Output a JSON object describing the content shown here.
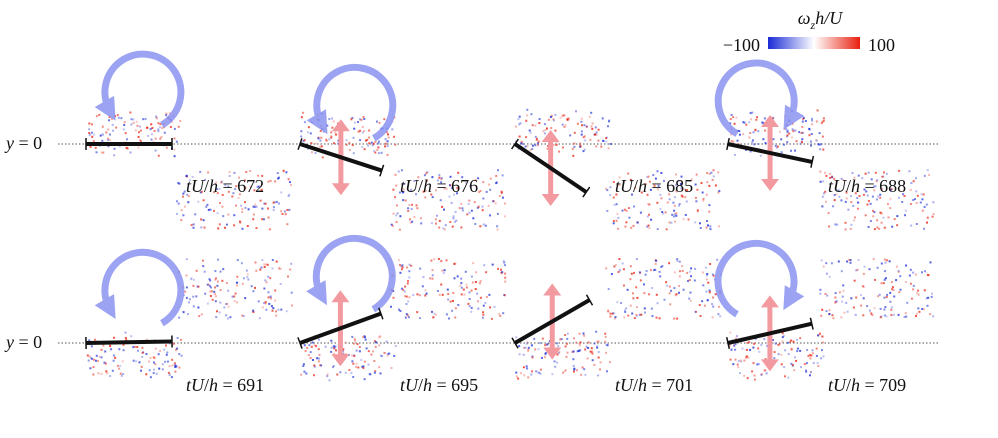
{
  "colorbar": {
    "title": "ω",
    "title_sub": "z",
    "title_rest": "h/U",
    "min_label": "−100",
    "max_label": "100",
    "colors": {
      "negative": "#1a2bd6",
      "mid": "#ffffff",
      "positive": "#e8200e"
    }
  },
  "row_label": {
    "var": "y",
    "rest": " = 0"
  },
  "panels": [
    {
      "time": "672",
      "angle": 0,
      "rotation": "ccw",
      "arrow": "none"
    },
    {
      "time": "676",
      "angle": 18,
      "rotation": "ccw",
      "arrow": "up"
    },
    {
      "time": "685",
      "angle": 34,
      "rotation": "none",
      "arrow": "up"
    },
    {
      "time": "688",
      "angle": 12,
      "rotation": "cw",
      "arrow": "up"
    },
    {
      "time": "691",
      "angle": -1,
      "rotation": "ccw",
      "arrow": "none"
    },
    {
      "time": "695",
      "angle": -20,
      "rotation": "ccw",
      "arrow": "down"
    },
    {
      "time": "701",
      "angle": -30,
      "rotation": "none",
      "arrow": "down"
    },
    {
      "time": "709",
      "angle": -13,
      "rotation": "cw",
      "arrow": "down"
    }
  ],
  "panel_label": {
    "var1": "tU",
    "slash": "/",
    "var2": "h",
    "eq": " = "
  },
  "colors": {
    "plate": "#111111",
    "rotation_arrow": "#8a93f0",
    "heave_arrow": "#f29aa0",
    "baseline": "#555555"
  }
}
